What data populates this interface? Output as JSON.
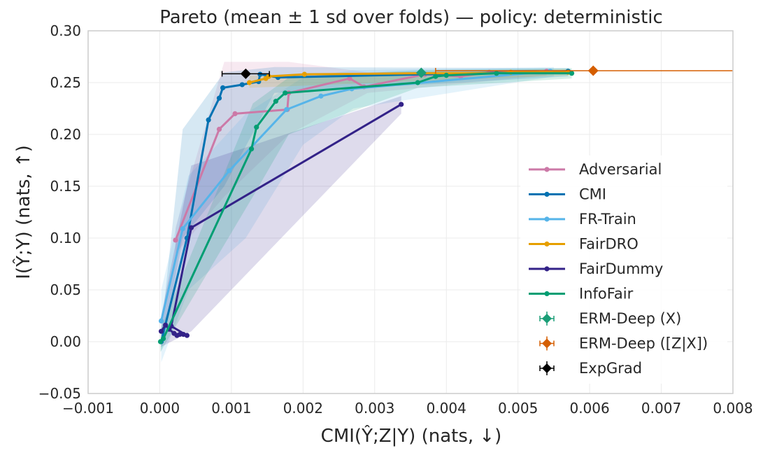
{
  "chart_data": {
    "type": "line",
    "title": "Pareto (mean ± 1 sd over folds) — policy: deterministic",
    "xlabel": "CMI(Ŷ;Z|Y) (nats, ↓)",
    "ylabel": "I(Ŷ;Y) (nats, ↑)",
    "xlim": [
      -0.001,
      0.008
    ],
    "ylim": [
      -0.05,
      0.3
    ],
    "xticks": [
      -0.001,
      0.0,
      0.001,
      0.002,
      0.003,
      0.004,
      0.005,
      0.006,
      0.007,
      0.008
    ],
    "xtick_labels": [
      "−0.001",
      "0.000",
      "0.001",
      "0.002",
      "0.003",
      "0.004",
      "0.005",
      "0.006",
      "0.007",
      "0.008"
    ],
    "yticks": [
      -0.05,
      0.0,
      0.05,
      0.1,
      0.15,
      0.2,
      0.25,
      0.3
    ],
    "ytick_labels": [
      "−0.05",
      "0.00",
      "0.05",
      "0.10",
      "0.15",
      "0.20",
      "0.25",
      "0.30"
    ],
    "grid": true,
    "legend_position": "right",
    "series": [
      {
        "name": "Adversarial",
        "color": "#cc79a7",
        "x": [
          0.00022,
          0.00083,
          0.00105,
          0.00178,
          0.0018,
          0.00265,
          0.00285,
          0.0037,
          0.0042,
          0.0046,
          0.0054
        ],
        "y": [
          0.098,
          0.205,
          0.22,
          0.224,
          0.24,
          0.254,
          0.246,
          0.258,
          0.256,
          0.26,
          0.261
        ],
        "band": {
          "x": [
            0.00022,
            0.0009,
            0.0018,
            0.0029,
            0.0054
          ],
          "lo": [
            0.085,
            0.14,
            0.2,
            0.24,
            0.257
          ],
          "hi": [
            0.11,
            0.27,
            0.27,
            0.26,
            0.263
          ]
        }
      },
      {
        "name": "CMI",
        "color": "#0072b2",
        "x": [
          2e-05,
          0.00038,
          0.00068,
          0.00083,
          0.00088,
          0.00115,
          0.00138,
          0.0014,
          0.00165,
          0.0057
        ],
        "y": [
          0.0,
          0.1,
          0.214,
          0.235,
          0.245,
          0.248,
          0.251,
          0.258,
          0.255,
          0.261
        ],
        "band": {
          "x": [
            2e-05,
            0.00032,
            0.0009,
            0.0016,
            0.0057
          ],
          "lo": [
            -0.01,
            0.1,
            0.15,
            0.24,
            0.256
          ],
          "hi": [
            0.01,
            0.205,
            0.26,
            0.265,
            0.264
          ]
        }
      },
      {
        "name": "FR-Train",
        "color": "#56b4e9",
        "x": [
          2e-05,
          0.00032,
          0.00097,
          0.00177,
          0.00225,
          0.00268,
          0.00545
        ],
        "y": [
          0.02,
          0.109,
          0.165,
          0.224,
          0.237,
          0.244,
          0.261
        ],
        "band": {
          "x": [
            2e-05,
            0.0004,
            0.0012,
            0.002,
            0.0027,
            0.0055
          ],
          "lo": [
            -0.02,
            0.05,
            0.1,
            0.19,
            0.225,
            0.256
          ],
          "hi": [
            0.05,
            0.16,
            0.22,
            0.255,
            0.262,
            0.265
          ]
        }
      },
      {
        "name": "FairDRO",
        "color": "#e69f00",
        "x": [
          0.00125,
          0.00148,
          0.00152,
          0.00202,
          0.00365,
          0.0047,
          0.0049,
          0.0057
        ],
        "y": [
          0.25,
          0.254,
          0.256,
          0.258,
          0.259,
          0.259,
          0.26,
          0.26
        ],
        "band": {
          "x": [
            0.00125,
            0.0057
          ],
          "lo": [
            0.245,
            0.257
          ],
          "hi": [
            0.257,
            0.263
          ]
        }
      },
      {
        "name": "FairDummy",
        "color": "#332288",
        "x": [
          2e-05,
          8e-05,
          0.00013,
          0.0002,
          0.00024,
          0.00028,
          0.00033,
          0.00038,
          0.00016,
          0.00044,
          0.00337
        ],
        "y": [
          0.01,
          0.016,
          0.012,
          0.008,
          0.006,
          0.007,
          0.007,
          0.006,
          0.015,
          0.11,
          0.229
        ],
        "band": {
          "x": [
            2e-05,
            0.00044,
            0.00337
          ],
          "lo": [
            -0.005,
            0.01,
            0.22
          ],
          "hi": [
            0.025,
            0.17,
            0.237
          ]
        }
      },
      {
        "name": "InfoFair",
        "color": "#009e73",
        "x": [
          1e-05,
          5e-05,
          0.00128,
          0.00135,
          0.00162,
          0.00175,
          0.0036,
          0.00385,
          0.004,
          0.0047,
          0.00575
        ],
        "y": [
          0.0,
          0.003,
          0.186,
          0.207,
          0.232,
          0.24,
          0.25,
          0.256,
          0.257,
          0.259,
          0.259
        ],
        "band": {
          "x": [
            1e-05,
            0.0013,
            0.0018,
            0.0036,
            0.00575
          ],
          "lo": [
            -0.01,
            0.14,
            0.2,
            0.245,
            0.254
          ],
          "hi": [
            0.012,
            0.23,
            0.255,
            0.262,
            0.264
          ]
        }
      }
    ],
    "points": [
      {
        "name": "ERM-Deep (X)",
        "color": "#1b9e77",
        "x": 0.00365,
        "y": 0.2595,
        "xerr": 0.0,
        "yerr": 0.0
      },
      {
        "name": "ERM-Deep ([Z|X])",
        "color": "#d55e00",
        "x": 0.00605,
        "y": 0.2615,
        "xerr": 0.0022,
        "yerr": 0.0
      },
      {
        "name": "ExpGrad",
        "color": "#000000",
        "x": 0.0012,
        "y": 0.2585,
        "xerr": 0.00033,
        "yerr": 0.0
      }
    ]
  }
}
